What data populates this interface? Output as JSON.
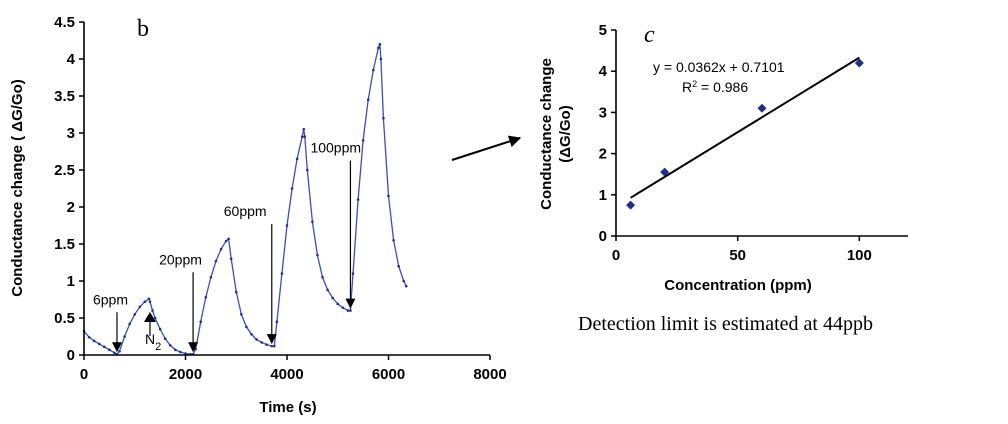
{
  "chart_data": [
    {
      "type": "line",
      "panel_label": "b",
      "xlabel": "Time (s)",
      "ylabel": "Conductance change ( ΔG/Go)",
      "xlim": [
        0,
        8000
      ],
      "ylim": [
        0,
        4.5
      ],
      "x_ticks": [
        "0",
        "2000",
        "4000",
        "6000",
        "8000"
      ],
      "y_ticks": [
        "0",
        "0.5",
        "1",
        "1.5",
        "2",
        "2.5",
        "3",
        "3.5",
        "4",
        "4.5"
      ],
      "series_color": "#3b4fb8",
      "x": [
        0,
        100,
        200,
        300,
        400,
        500,
        600,
        650,
        700,
        800,
        900,
        1000,
        1100,
        1200,
        1280,
        1300,
        1350,
        1400,
        1500,
        1600,
        1700,
        1800,
        1900,
        2000,
        2100,
        2150,
        2200,
        2300,
        2400,
        2500,
        2600,
        2700,
        2800,
        2850,
        2900,
        3000,
        3100,
        3200,
        3300,
        3400,
        3500,
        3600,
        3700,
        3750,
        3800,
        3900,
        4000,
        4100,
        4200,
        4300,
        4330,
        4350,
        4400,
        4500,
        4600,
        4700,
        4800,
        4900,
        5000,
        5100,
        5200,
        5250,
        5300,
        5400,
        5500,
        5600,
        5700,
        5800,
        5830,
        5850,
        5900,
        6000,
        6100,
        6200,
        6300,
        6350
      ],
      "y": [
        0.32,
        0.24,
        0.19,
        0.15,
        0.11,
        0.07,
        0.03,
        0.01,
        0.05,
        0.25,
        0.42,
        0.55,
        0.65,
        0.72,
        0.76,
        0.72,
        0.6,
        0.5,
        0.35,
        0.22,
        0.13,
        0.07,
        0.04,
        0.02,
        0.01,
        0.01,
        0.08,
        0.45,
        0.78,
        1.05,
        1.27,
        1.43,
        1.54,
        1.57,
        1.3,
        0.85,
        0.55,
        0.38,
        0.28,
        0.21,
        0.17,
        0.14,
        0.12,
        0.12,
        0.45,
        1.1,
        1.75,
        2.25,
        2.65,
        2.95,
        3.05,
        2.95,
        2.5,
        1.8,
        1.35,
        1.05,
        0.88,
        0.77,
        0.69,
        0.64,
        0.6,
        0.6,
        1.1,
        2.1,
        2.9,
        3.45,
        3.85,
        4.15,
        4.2,
        4.0,
        3.2,
        2.15,
        1.55,
        1.2,
        1.0,
        0.93
      ],
      "events": [
        {
          "label": "6ppm",
          "x": 650,
          "direction": "down"
        },
        {
          "label": "20ppm",
          "x": 2150,
          "direction": "down"
        },
        {
          "label": "60ppm",
          "x": 3700,
          "direction": "down"
        },
        {
          "label": "100ppm",
          "x": 5250,
          "direction": "down"
        }
      ],
      "n2_marker": {
        "label_main": "N",
        "label_sub": "2",
        "x": 1300,
        "direction": "up"
      }
    },
    {
      "type": "scatter",
      "panel_label": "c",
      "xlabel": "Concentration (ppm)",
      "ylabel_line1": "Conductance change",
      "ylabel_line2": "(ΔG/Go)",
      "xlim": [
        0,
        120
      ],
      "ylim": [
        0,
        5
      ],
      "x_ticks": [
        "0",
        "50",
        "100"
      ],
      "y_ticks": [
        "0",
        "1",
        "2",
        "3",
        "4",
        "5"
      ],
      "marker_color": "#1f2f8f",
      "points": [
        {
          "x": 6,
          "y": 0.75
        },
        {
          "x": 20,
          "y": 1.55
        },
        {
          "x": 60,
          "y": 3.1
        },
        {
          "x": 100,
          "y": 4.2
        }
      ],
      "fit": {
        "slope": 0.0362,
        "intercept": 0.7101,
        "x_range": [
          6,
          100
        ]
      },
      "equation": "y = 0.0362x + 0.7101",
      "r2_main": "R",
      "r2_sup": "2",
      "r2_value": " = 0.986"
    }
  ],
  "note": "Detection limit is estimated at 44ppb"
}
